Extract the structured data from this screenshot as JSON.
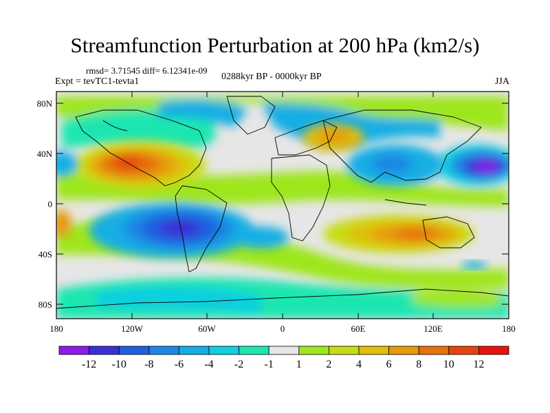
{
  "title": "Streamfunction Perturbation at 200 hPa (km2/s)",
  "stats": "rmsd= 3.71545  diff= 6.12341e-09",
  "experiment": "Expt = tevTC1-tevta1",
  "period": "0288kyr BP - 0000kyr BP",
  "season": "JJA",
  "map": {
    "projection": "cylindrical equidistant",
    "lon_range": [
      -180,
      180
    ],
    "lat_range": [
      -90,
      90
    ],
    "y_ticks": [
      "80N",
      "40N",
      "0",
      "40S",
      "80S"
    ],
    "x_ticks": [
      "180",
      "120W",
      "60W",
      "0",
      "60E",
      "120E",
      "180"
    ]
  },
  "colorbar": {
    "labels": [
      "-12",
      "-10",
      "-8",
      "-6",
      "-4",
      "-2",
      "-1",
      "1",
      "2",
      "4",
      "6",
      "8",
      "10",
      "12"
    ],
    "colors": [
      "#8c1bea",
      "#3b2fd6",
      "#1f5fe0",
      "#1c86e2",
      "#13aee4",
      "#10cfe0",
      "#1ee6b0",
      "#e6e6e6",
      "#9ee61e",
      "#c8dc12",
      "#e0be0a",
      "#e69a0a",
      "#e6700c",
      "#e6440e",
      "#e6140e"
    ]
  }
}
